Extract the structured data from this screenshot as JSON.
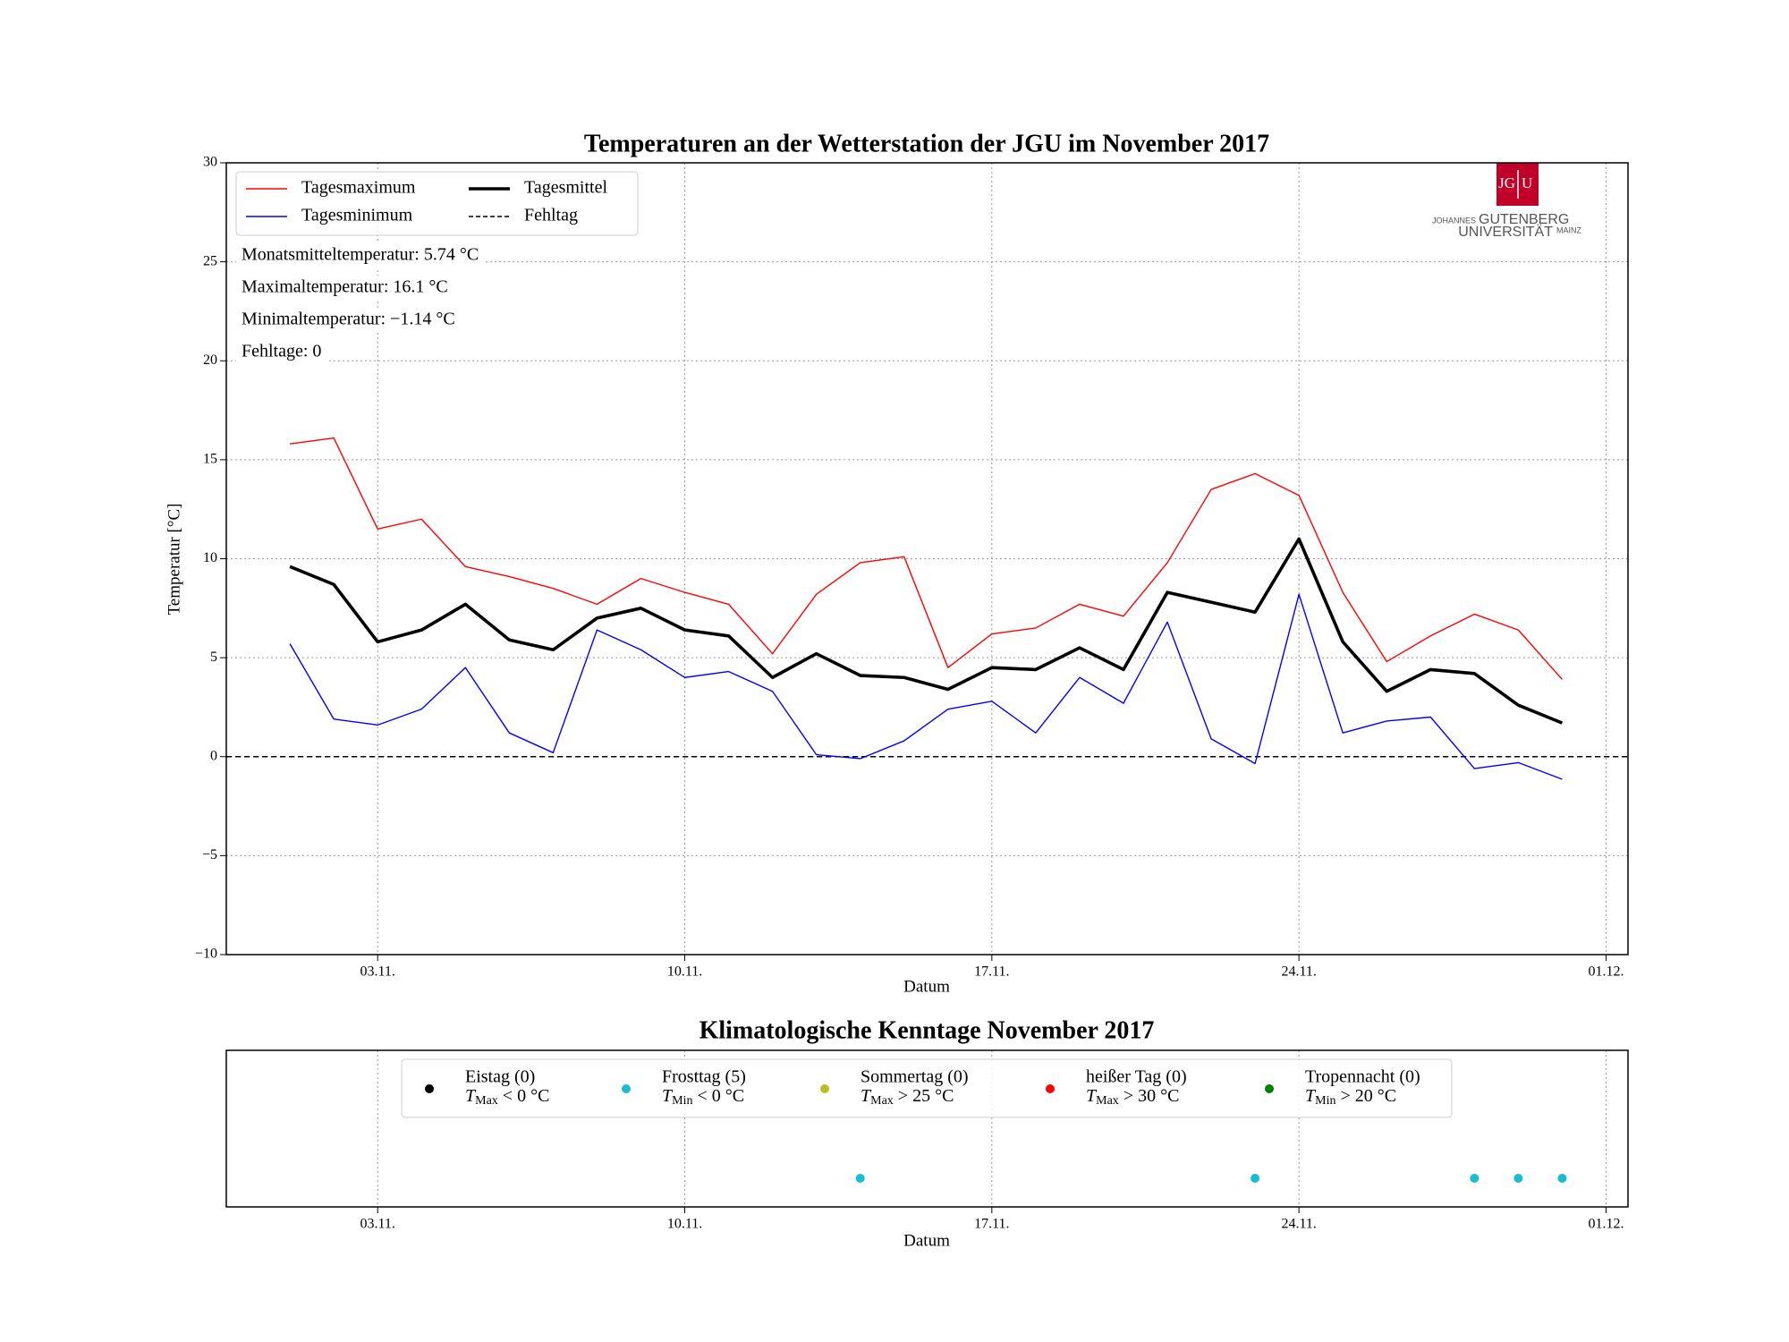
{
  "chart_data": [
    {
      "type": "line",
      "title": "Temperaturen an der Wetterstation der JGU im November 2017",
      "x_label": "Datum",
      "y_label": "Temperatur [°C]",
      "x": [
        1,
        2,
        3,
        4,
        5,
        6,
        7,
        8,
        9,
        10,
        11,
        12,
        13,
        14,
        15,
        16,
        17,
        18,
        19,
        20,
        21,
        22,
        23,
        24,
        25,
        26,
        27,
        28,
        29,
        30
      ],
      "xlim": [
        -0.45,
        31.5
      ],
      "xticks": [
        {
          "value": 3,
          "label": "03.11."
        },
        {
          "value": 10,
          "label": "10.11."
        },
        {
          "value": 17,
          "label": "17.11."
        },
        {
          "value": 24,
          "label": "24.11."
        },
        {
          "value": 31,
          "label": "01.12."
        }
      ],
      "ylim": [
        -10,
        30
      ],
      "yticks": [
        {
          "value": -10,
          "label": "−10"
        },
        {
          "value": -5,
          "label": "−5"
        },
        0,
        5,
        10,
        15,
        20,
        25,
        30
      ],
      "grid": true,
      "series": [
        {
          "name": "Tagesmaximum",
          "color": "#ff0000",
          "linewidth": 1.4,
          "values": [
            15.8,
            16.1,
            11.5,
            12.0,
            9.6,
            9.1,
            8.5,
            7.7,
            9.0,
            8.3,
            7.7,
            5.2,
            8.2,
            9.8,
            10.1,
            4.5,
            6.2,
            6.5,
            7.7,
            7.1,
            9.8,
            13.5,
            14.3,
            13.2,
            8.3,
            4.8,
            6.1,
            7.2,
            6.4,
            3.9
          ]
        },
        {
          "name": "Tagesminimum",
          "color": "#0000ff",
          "linewidth": 1.4,
          "values": [
            5.7,
            1.9,
            1.6,
            2.4,
            4.5,
            1.2,
            0.2,
            6.4,
            5.4,
            4.0,
            4.3,
            3.3,
            0.1,
            -0.1,
            0.8,
            2.4,
            2.8,
            1.2,
            4.0,
            2.7,
            6.8,
            0.9,
            -0.35,
            8.2,
            1.2,
            1.8,
            2.0,
            -0.6,
            -0.3,
            -1.14
          ]
        },
        {
          "name": "Tagesmittel",
          "color": "#000000",
          "linewidth": 3.6,
          "values": [
            9.6,
            8.7,
            5.8,
            6.4,
            7.7,
            5.9,
            5.4,
            7.0,
            7.5,
            6.4,
            6.1,
            4.0,
            5.2,
            4.1,
            4.0,
            3.4,
            4.5,
            4.4,
            5.5,
            4.4,
            8.3,
            7.8,
            7.3,
            11.0,
            5.8,
            3.3,
            4.4,
            4.2,
            2.6,
            1.7
          ]
        }
      ],
      "hline": {
        "name": "Fehltag",
        "value": 0,
        "color": "#000000"
      },
      "annotations": [
        "Monatsmitteltemperatur: 5.74 °C",
        "Maximaltemperatur: 16.1 °C",
        "Minimaltemperatur: −1.14 °C",
        "Fehltage: 0"
      ]
    },
    {
      "type": "scatter",
      "title": "Klimatologische Kenntage November 2017",
      "x_label": "Datum",
      "xlim": [
        -0.45,
        31.5
      ],
      "xticks": [
        {
          "value": 3,
          "label": "03.11."
        },
        {
          "value": 10,
          "label": "10.11."
        },
        {
          "value": 17,
          "label": "17.11."
        },
        {
          "value": 24,
          "label": "24.11."
        },
        {
          "value": 31,
          "label": "01.12."
        }
      ],
      "grid": true,
      "series": [
        {
          "name": "Eistag (0)",
          "symbol": "T",
          "sub": "Max",
          "condition": " < 0 °C",
          "color": "#000000",
          "x": []
        },
        {
          "name": "Frosttag (5)",
          "symbol": "T",
          "sub": "Min",
          "condition": " < 0 °C",
          "color": "#17becf",
          "x": [
            14,
            23,
            28,
            29,
            30
          ]
        },
        {
          "name": "Sommertag (0)",
          "symbol": "T",
          "sub": "Max",
          "condition": " > 25 °C",
          "color": "#bcbd22",
          "x": []
        },
        {
          "name": "heißer Tag (0)",
          "symbol": "T",
          "sub": "Max",
          "condition": " > 30 °C",
          "color": "#ff0000",
          "x": []
        },
        {
          "name": "Tropennacht (0)",
          "symbol": "T",
          "sub": "Min",
          "condition": " > 20 °C",
          "color": "#008000",
          "x": []
        }
      ]
    }
  ],
  "logo": {
    "mark_left": "JG",
    "mark_right": "U",
    "line1_small": "JOHANNES",
    "line1": "GUTENBERG",
    "line2": "UNIVERSITÄT",
    "line2_small": "MAINZ"
  }
}
